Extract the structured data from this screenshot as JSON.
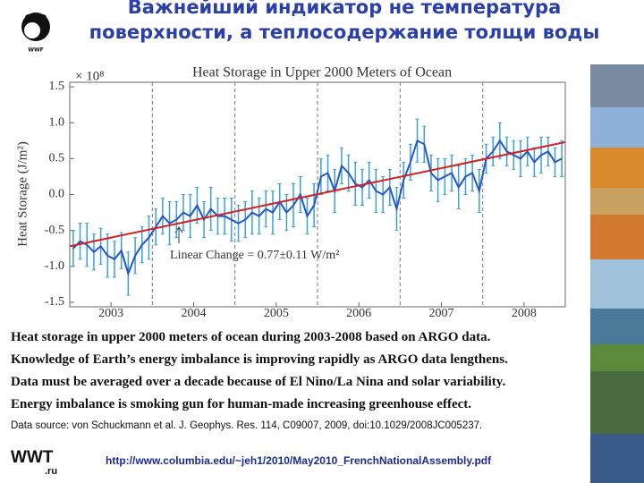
{
  "slide_title": "Важнейший индикатор не температура поверхности, а теплосодержание толщи воды",
  "chart_data": {
    "type": "line",
    "title": "Heat Storage in Upper 2000 Meters of Ocean",
    "y_label": "Heat Storage (J/m²)",
    "y_exponent": "× 10⁸",
    "annotation": "Linear Change = 0.77±0.11 W/m²",
    "xlim": [
      2003,
      2009
    ],
    "ylim": [
      -1.5,
      1.5
    ],
    "xticks": [
      {
        "value": 2003.5,
        "label": "2003"
      },
      {
        "value": 2004.5,
        "label": "2004"
      },
      {
        "value": 2005.5,
        "label": "2005"
      },
      {
        "value": 2006.5,
        "label": "2006"
      },
      {
        "value": 2007.5,
        "label": "2007"
      },
      {
        "value": 2008.5,
        "label": "2008"
      }
    ],
    "x_gridlines": [
      2004,
      2005,
      2006,
      2007,
      2008
    ],
    "yticks": [
      1.5,
      {
        "value": 1,
        "label": "1.0"
      },
      0.5,
      {
        "value": 0,
        "label": "0.0"
      },
      -0.5,
      {
        "value": -1,
        "label": "-1.0"
      },
      -1.5
    ],
    "x": [
      2003.042,
      2003.125,
      2003.208,
      2003.292,
      2003.375,
      2003.458,
      2003.542,
      2003.625,
      2003.708,
      2003.792,
      2003.875,
      2003.958,
      2004.042,
      2004.125,
      2004.208,
      2004.292,
      2004.375,
      2004.458,
      2004.542,
      2004.625,
      2004.708,
      2004.792,
      2004.875,
      2004.958,
      2005.042,
      2005.125,
      2005.208,
      2005.292,
      2005.375,
      2005.458,
      2005.542,
      2005.625,
      2005.708,
      2005.792,
      2005.875,
      2005.958,
      2006.042,
      2006.125,
      2006.208,
      2006.292,
      2006.375,
      2006.458,
      2006.542,
      2006.625,
      2006.708,
      2006.792,
      2006.875,
      2006.958,
      2007.042,
      2007.125,
      2007.208,
      2007.292,
      2007.375,
      2007.458,
      2007.542,
      2007.625,
      2007.708,
      2007.792,
      2007.875,
      2007.958,
      2008.042,
      2008.125,
      2008.208,
      2008.292,
      2008.375,
      2008.458,
      2008.542,
      2008.625,
      2008.708,
      2008.792,
      2008.875,
      2008.958
    ],
    "series": [
      {
        "color": "#2456c8",
        "error_color": "#3aa0d8",
        "values": [
          -0.75,
          -0.65,
          -0.7,
          -0.8,
          -0.72,
          -0.85,
          -0.9,
          -0.78,
          -1.1,
          -0.85,
          -0.7,
          -0.6,
          -0.45,
          -0.3,
          -0.4,
          -0.35,
          -0.25,
          -0.3,
          -0.15,
          -0.35,
          -0.2,
          -0.3,
          -0.3,
          -0.35,
          -0.4,
          -0.35,
          -0.25,
          -0.3,
          -0.2,
          -0.25,
          -0.1,
          -0.25,
          -0.15,
          0.0,
          -0.3,
          -0.15,
          0.25,
          0.3,
          0.05,
          0.4,
          0.3,
          0.15,
          0.1,
          0.2,
          0.05,
          0.0,
          0.1,
          -0.2,
          0.2,
          0.45,
          0.75,
          0.7,
          0.3,
          0.2,
          0.25,
          0.3,
          0.1,
          0.25,
          0.3,
          0.05,
          0.5,
          0.6,
          0.75,
          0.6,
          0.55,
          0.5,
          0.6,
          0.45,
          0.55,
          0.6,
          0.45,
          0.5
        ],
        "errors": [
          0.25,
          0.25,
          0.3,
          0.25,
          0.25,
          0.3,
          0.25,
          0.25,
          0.3,
          0.25,
          0.25,
          0.3,
          0.25,
          0.25,
          0.3,
          0.25,
          0.25,
          0.3,
          0.25,
          0.25,
          0.3,
          0.25,
          0.25,
          0.3,
          0.25,
          0.25,
          0.3,
          0.25,
          0.25,
          0.3,
          0.25,
          0.25,
          0.3,
          0.25,
          0.25,
          0.3,
          0.25,
          0.25,
          0.3,
          0.25,
          0.25,
          0.3,
          0.25,
          0.25,
          0.3,
          0.25,
          0.25,
          0.3,
          0.25,
          0.25,
          0.3,
          0.25,
          0.25,
          0.3,
          0.25,
          0.25,
          0.3,
          0.25,
          0.25,
          0.3,
          0.2,
          0.2,
          0.25,
          0.2,
          0.2,
          0.25,
          0.2,
          0.2,
          0.25,
          0.2,
          0.2,
          0.25
        ]
      }
    ],
    "trend": {
      "color": "#d42020",
      "x": [
        2003,
        2009
      ],
      "values": [
        -0.72,
        0.73
      ]
    }
  },
  "captions": [
    "Heat storage in upper 2000 meters of ocean during 2003-2008 based on ARGO data.",
    "Knowledge of Earth’s energy imbalance is improving rapidly as ARGO data lengthens.",
    "Data must be averaged over a decade because of El Nino/La Nina and solar variability.",
    "Energy imbalance is smoking gun for human-made increasing greenhouse effect."
  ],
  "data_source": "Data source: von Schuckmann et al. J. Geophys. Res. 114, C09007, 2009, doi:10.1029/2008JC005237.",
  "url": "http://www.columbia.edu/~jeh1/2010/May2010_FrenchNationalAssembly.pdf",
  "logos": {
    "wwf": "WWF",
    "wwt": "WWT",
    "wwt_domain": ".ru"
  }
}
